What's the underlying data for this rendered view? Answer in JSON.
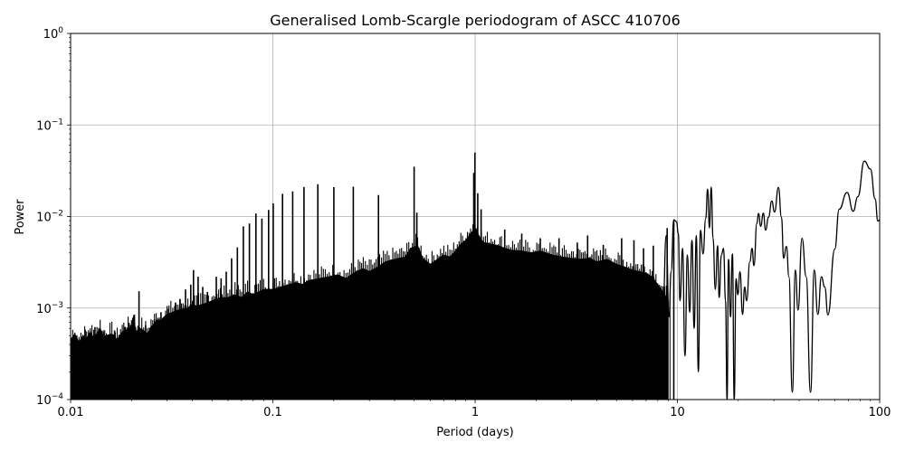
{
  "chart_data": {
    "type": "line",
    "title": "Generalised Lomb-Scargle periodogram of ASCC 410706",
    "xlabel": "Period (days)",
    "ylabel": "Power",
    "xscale": "log",
    "yscale": "log",
    "xlim": [
      0.01,
      100
    ],
    "ylim": [
      0.0001,
      1
    ],
    "grid": true,
    "legend": null,
    "x_ticks": [
      {
        "value": 0.01,
        "label": "0.01"
      },
      {
        "value": 0.1,
        "label": "0.1"
      },
      {
        "value": 1,
        "label": "1"
      },
      {
        "value": 10,
        "label": "10"
      },
      {
        "value": 100,
        "label": "100"
      }
    ],
    "y_ticks": [
      {
        "value": 1,
        "base": "10",
        "exp": "0"
      },
      {
        "value": 0.1,
        "base": "10",
        "exp": "−1"
      },
      {
        "value": 0.01,
        "base": "10",
        "exp": "−2"
      },
      {
        "value": 0.001,
        "base": "10",
        "exp": "−3"
      },
      {
        "value": 0.0001,
        "base": "10",
        "exp": "−4"
      }
    ],
    "line_color": "#000000",
    "grid_color": "#b0b0b0",
    "dense_region": {
      "description": "Unresolved dense oscillation filling from the bottom axis up to the envelope (0.01 to ~9 days)",
      "upper_envelope": [
        [
          0.01,
          0.00045
        ],
        [
          0.0105,
          0.00052
        ],
        [
          0.011,
          0.00042
        ],
        [
          0.0115,
          0.0005
        ],
        [
          0.012,
          0.00046
        ],
        [
          0.0125,
          0.00055
        ],
        [
          0.013,
          0.00047
        ],
        [
          0.0135,
          0.00053
        ],
        [
          0.014,
          0.0006
        ],
        [
          0.0145,
          0.00048
        ],
        [
          0.015,
          0.0005
        ],
        [
          0.016,
          0.00052
        ],
        [
          0.017,
          0.00045
        ],
        [
          0.018,
          0.00055
        ],
        [
          0.019,
          0.00058
        ],
        [
          0.0195,
          0.0006
        ],
        [
          0.02,
          0.00062
        ],
        [
          0.0205,
          0.0008
        ],
        [
          0.021,
          0.00055
        ],
        [
          0.022,
          0.0006
        ],
        [
          0.023,
          0.00057
        ],
        [
          0.024,
          0.00052
        ],
        [
          0.025,
          0.00062
        ],
        [
          0.026,
          0.00068
        ],
        [
          0.027,
          0.00075
        ],
        [
          0.028,
          0.00072
        ],
        [
          0.029,
          0.0008
        ],
        [
          0.03,
          0.00085
        ],
        [
          0.032,
          0.0009
        ],
        [
          0.034,
          0.00095
        ],
        [
          0.036,
          0.00098
        ],
        [
          0.038,
          0.001
        ],
        [
          0.04,
          0.0011
        ],
        [
          0.042,
          0.00105
        ],
        [
          0.045,
          0.0011
        ],
        [
          0.048,
          0.00115
        ],
        [
          0.05,
          0.0012
        ],
        [
          0.055,
          0.0013
        ],
        [
          0.06,
          0.0013
        ],
        [
          0.065,
          0.0014
        ],
        [
          0.07,
          0.0013
        ],
        [
          0.075,
          0.0015
        ],
        [
          0.08,
          0.0014
        ],
        [
          0.09,
          0.0016
        ],
        [
          0.1,
          0.0016
        ],
        [
          0.11,
          0.0017
        ],
        [
          0.12,
          0.0018
        ],
        [
          0.13,
          0.0019
        ],
        [
          0.14,
          0.0018
        ],
        [
          0.15,
          0.002
        ],
        [
          0.17,
          0.0021
        ],
        [
          0.19,
          0.0022
        ],
        [
          0.21,
          0.0023
        ],
        [
          0.23,
          0.0021
        ],
        [
          0.25,
          0.0024
        ],
        [
          0.28,
          0.0027
        ],
        [
          0.3,
          0.0025
        ],
        [
          0.33,
          0.0028
        ],
        [
          0.36,
          0.0032
        ],
        [
          0.4,
          0.0034
        ],
        [
          0.45,
          0.0036
        ],
        [
          0.48,
          0.0045
        ],
        [
          0.52,
          0.0048
        ],
        [
          0.55,
          0.0035
        ],
        [
          0.6,
          0.003
        ],
        [
          0.65,
          0.0034
        ],
        [
          0.7,
          0.0038
        ],
        [
          0.75,
          0.0036
        ],
        [
          0.8,
          0.0042
        ],
        [
          0.85,
          0.005
        ],
        [
          0.9,
          0.0055
        ],
        [
          0.95,
          0.0065
        ],
        [
          1.0,
          0.0075
        ],
        [
          1.05,
          0.006
        ],
        [
          1.1,
          0.0052
        ],
        [
          1.2,
          0.005
        ],
        [
          1.3,
          0.0048
        ],
        [
          1.4,
          0.0045
        ],
        [
          1.5,
          0.0043
        ],
        [
          1.7,
          0.0042
        ],
        [
          1.9,
          0.004
        ],
        [
          2.1,
          0.0042
        ],
        [
          2.4,
          0.0038
        ],
        [
          2.7,
          0.0036
        ],
        [
          3.0,
          0.0035
        ],
        [
          3.3,
          0.0034
        ],
        [
          3.7,
          0.0035
        ],
        [
          4.0,
          0.0032
        ],
        [
          4.5,
          0.0034
        ],
        [
          5.0,
          0.003
        ],
        [
          5.5,
          0.0028
        ],
        [
          6.0,
          0.0026
        ],
        [
          6.5,
          0.0025
        ],
        [
          7.0,
          0.0024
        ],
        [
          7.5,
          0.0022
        ],
        [
          8.0,
          0.0018
        ],
        [
          8.5,
          0.0015
        ],
        [
          9.0,
          0.0012
        ]
      ],
      "fill_floor_period_max": 0.75
    },
    "spikes": [
      {
        "period": 0.0105,
        "power": 0.00052
      },
      {
        "period": 0.0118,
        "power": 0.00058
      },
      {
        "period": 0.0132,
        "power": 0.00062
      },
      {
        "period": 0.0145,
        "power": 0.00055
      },
      {
        "period": 0.0165,
        "power": 0.00057
      },
      {
        "period": 0.0185,
        "power": 0.00062
      },
      {
        "period": 0.0218,
        "power": 0.00152
      },
      {
        "period": 0.0235,
        "power": 0.00065
      },
      {
        "period": 0.026,
        "power": 0.00075
      },
      {
        "period": 0.028,
        "power": 0.0009
      },
      {
        "period": 0.0305,
        "power": 0.00098
      },
      {
        "period": 0.033,
        "power": 0.00115
      },
      {
        "period": 0.0348,
        "power": 0.00125
      },
      {
        "period": 0.037,
        "power": 0.0016
      },
      {
        "period": 0.0393,
        "power": 0.0018
      },
      {
        "period": 0.0405,
        "power": 0.0026
      },
      {
        "period": 0.0427,
        "power": 0.0022
      },
      {
        "period": 0.045,
        "power": 0.0017
      },
      {
        "period": 0.0475,
        "power": 0.0015
      },
      {
        "period": 0.0525,
        "power": 0.0022
      },
      {
        "period": 0.0555,
        "power": 0.0021
      },
      {
        "period": 0.0588,
        "power": 0.0025
      },
      {
        "period": 0.0625,
        "power": 0.0035
      },
      {
        "period": 0.0668,
        "power": 0.0046
      },
      {
        "period": 0.0715,
        "power": 0.0078
      },
      {
        "period": 0.0766,
        "power": 0.0084
      },
      {
        "period": 0.0825,
        "power": 0.0108
      },
      {
        "period": 0.0883,
        "power": 0.0095
      },
      {
        "period": 0.0953,
        "power": 0.0118
      },
      {
        "period": 0.1004,
        "power": 0.0139
      },
      {
        "period": 0.1116,
        "power": 0.0177
      },
      {
        "period": 0.1253,
        "power": 0.0188
      },
      {
        "period": 0.1426,
        "power": 0.021
      },
      {
        "period": 0.1668,
        "power": 0.0225
      },
      {
        "period": 0.2002,
        "power": 0.021
      },
      {
        "period": 0.2498,
        "power": 0.0212
      },
      {
        "period": 0.3328,
        "power": 0.0172
      },
      {
        "period": 0.4994,
        "power": 0.035
      },
      {
        "period": 0.515,
        "power": 0.011
      },
      {
        "period": 0.998,
        "power": 0.05
      },
      {
        "period": 0.985,
        "power": 0.03
      },
      {
        "period": 1.03,
        "power": 0.018
      },
      {
        "period": 1.07,
        "power": 0.012
      },
      {
        "period": 1.4,
        "power": 0.0072
      },
      {
        "period": 1.7,
        "power": 0.0065
      },
      {
        "period": 2.1,
        "power": 0.0058
      },
      {
        "period": 2.6,
        "power": 0.0058
      },
      {
        "period": 3.2,
        "power": 0.0052
      },
      {
        "period": 3.6,
        "power": 0.0062
      },
      {
        "period": 4.3,
        "power": 0.0049
      },
      {
        "period": 5.3,
        "power": 0.0058
      },
      {
        "period": 6.1,
        "power": 0.0055
      },
      {
        "period": 6.8,
        "power": 0.0045
      },
      {
        "period": 7.6,
        "power": 0.0048
      },
      {
        "period": 8.9,
        "power": 0.0075
      },
      {
        "period": 9.6,
        "power": 0.009
      }
    ],
    "resolved_curve": [
      [
        8.2,
        0.0002
      ],
      [
        8.5,
        0.0011
      ],
      [
        8.8,
        0.0062
      ],
      [
        9.1,
        0.0008
      ],
      [
        9.3,
        0.0025
      ],
      [
        9.6,
        0.0092
      ],
      [
        9.9,
        0.0088
      ],
      [
        10.1,
        0.0065
      ],
      [
        10.3,
        0.0012
      ],
      [
        10.6,
        0.0045
      ],
      [
        10.9,
        0.0003
      ],
      [
        11.2,
        0.0038
      ],
      [
        11.5,
        0.0009
      ],
      [
        11.8,
        0.0055
      ],
      [
        12.1,
        0.0006
      ],
      [
        12.4,
        0.0062
      ],
      [
        12.7,
        0.0002
      ],
      [
        13.0,
        0.0071
      ],
      [
        13.4,
        0.0039
      ],
      [
        13.8,
        0.0095
      ],
      [
        14.1,
        0.02
      ],
      [
        14.4,
        0.0075
      ],
      [
        14.7,
        0.021
      ],
      [
        15.0,
        0.0058
      ],
      [
        15.4,
        0.0016
      ],
      [
        15.8,
        0.0048
      ],
      [
        16.1,
        0.0013
      ],
      [
        16.5,
        0.0038
      ],
      [
        16.9,
        0.0045
      ],
      [
        17.3,
        0.0012
      ],
      [
        17.6,
        0.0001
      ],
      [
        17.9,
        0.0034
      ],
      [
        18.3,
        0.0008
      ],
      [
        18.7,
        0.0039
      ],
      [
        19.1,
        0.0001
      ],
      [
        19.5,
        0.0021
      ],
      [
        19.9,
        0.0014
      ],
      [
        20.4,
        0.0025
      ],
      [
        21.0,
        0.00085
      ],
      [
        21.5,
        0.0017
      ],
      [
        22.0,
        0.0012
      ],
      [
        22.8,
        0.0032
      ],
      [
        23.4,
        0.0045
      ],
      [
        23.9,
        0.0029
      ],
      [
        24.7,
        0.0084
      ],
      [
        25.2,
        0.0108
      ],
      [
        25.8,
        0.0078
      ],
      [
        26.6,
        0.0109
      ],
      [
        27.3,
        0.0071
      ],
      [
        28.2,
        0.0098
      ],
      [
        29.3,
        0.0148
      ],
      [
        30.2,
        0.0112
      ],
      [
        31.6,
        0.0208
      ],
      [
        32.7,
        0.0098
      ],
      [
        33.5,
        0.0035
      ],
      [
        34.6,
        0.0047
      ],
      [
        35.6,
        0.0022
      ],
      [
        37.0,
        0.00012
      ],
      [
        38.3,
        0.0026
      ],
      [
        39.5,
        0.00095
      ],
      [
        41.3,
        0.0058
      ],
      [
        43.3,
        0.0022
      ],
      [
        45.5,
        0.00012
      ],
      [
        47.5,
        0.0026
      ],
      [
        49.5,
        0.00085
      ],
      [
        51.5,
        0.0022
      ],
      [
        53.5,
        0.0017
      ],
      [
        55.5,
        0.00084
      ],
      [
        60.0,
        0.0044
      ],
      [
        63.0,
        0.012
      ],
      [
        69.0,
        0.0183
      ],
      [
        74.0,
        0.0114
      ],
      [
        78.0,
        0.0165
      ],
      [
        84.0,
        0.0403
      ],
      [
        90.0,
        0.033
      ],
      [
        95.0,
        0.0155
      ],
      [
        98.0,
        0.0089
      ],
      [
        100.0,
        0.0092
      ]
    ]
  }
}
